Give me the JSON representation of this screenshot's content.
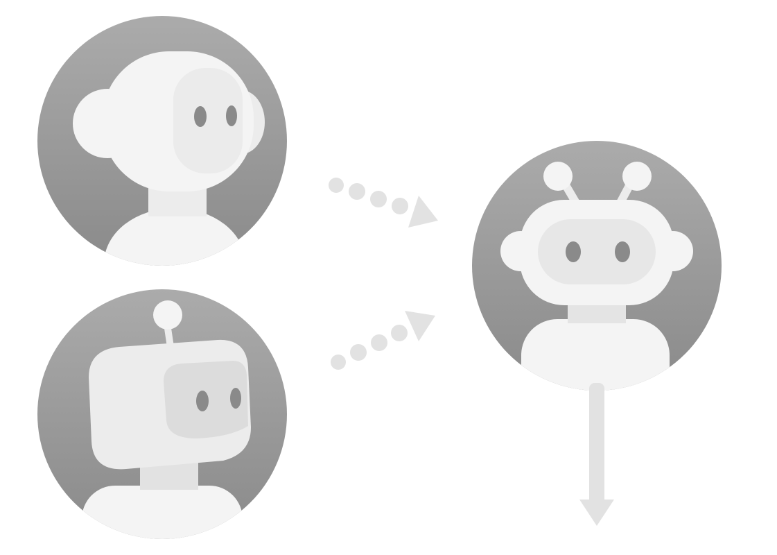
{
  "diagram": {
    "nodes": [
      {
        "id": "human-avatar",
        "icon": "person-head-icon",
        "role": "source"
      },
      {
        "id": "old-robot-avatar",
        "icon": "single-antenna-robot-icon",
        "role": "source"
      },
      {
        "id": "new-robot-avatar",
        "icon": "double-antenna-robot-icon",
        "role": "result"
      }
    ],
    "edges": [
      {
        "from": "human-avatar",
        "to": "new-robot-avatar",
        "style": "dotted-arrow"
      },
      {
        "from": "old-robot-avatar",
        "to": "new-robot-avatar",
        "style": "dotted-arrow"
      },
      {
        "from": "new-robot-avatar",
        "to": "downstream",
        "style": "solid-arrow"
      }
    ],
    "colors": {
      "avatar_bg_top": "#a9a9a9",
      "avatar_bg_bottom": "#8c8c8c",
      "figure_light": "#f4f4f4",
      "figure_mid": "#ececec",
      "face_plate": "#e4e4e4",
      "eye": "#8a8a8a",
      "connector": "#e2e2e2"
    }
  }
}
